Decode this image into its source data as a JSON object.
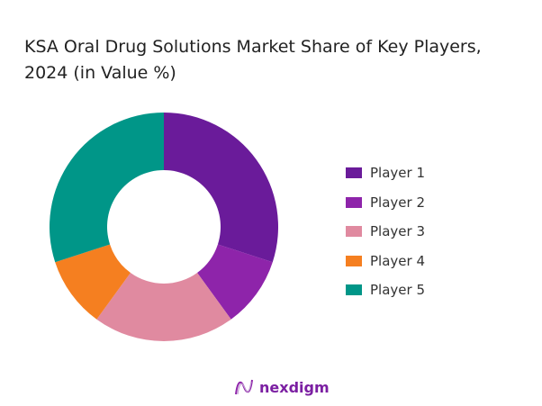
{
  "chart_data": {
    "type": "pie",
    "donut": true,
    "title": "KSA Oral Drug Solutions Market Share of Key Players, 2024 (in Value %)",
    "categories": [
      "Player 1",
      "Player 2",
      "Player 3",
      "Player 4",
      "Player 5"
    ],
    "values": [
      30,
      10,
      20,
      10,
      30
    ],
    "colors": [
      "#6a1b9a",
      "#8e24aa",
      "#e08aa0",
      "#f57f20",
      "#009688"
    ],
    "legend_position": "right"
  },
  "logo": {
    "text": "nexdigm"
  }
}
